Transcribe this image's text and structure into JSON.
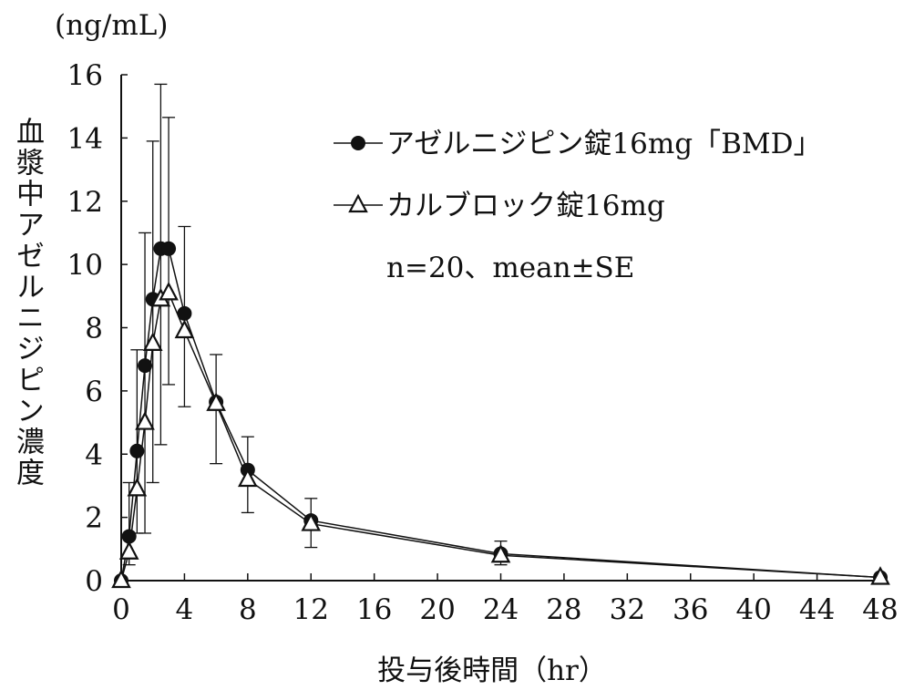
{
  "chart_data": {
    "type": "line",
    "unit_label": "(ng/mL)",
    "ylabel": "血漿中アゼルニジピン濃度",
    "xlabel": "投与後時間（hr）",
    "xlim": [
      0,
      48
    ],
    "ylim": [
      0,
      16
    ],
    "xticks": [
      0,
      4,
      8,
      12,
      16,
      20,
      24,
      28,
      32,
      36,
      40,
      44,
      48
    ],
    "yticks": [
      0,
      2,
      4,
      6,
      8,
      10,
      12,
      14,
      16
    ],
    "grid": false,
    "legend_position": "top-right",
    "annotation": "n=20、mean±SE",
    "x": [
      0,
      0.5,
      1,
      1.5,
      2,
      2.5,
      3,
      4,
      6,
      8,
      12,
      24,
      48
    ],
    "series": [
      {
        "name": "アゼルニジピン錠16mg「BMD」",
        "marker": "filled-circle",
        "values": [
          0,
          1.4,
          4.1,
          6.8,
          8.9,
          10.5,
          10.5,
          8.45,
          5.65,
          3.5,
          1.9,
          0.85,
          0.1
        ],
        "error_high": [
          0,
          3.1,
          7.3,
          11.0,
          13.9,
          15.7,
          null,
          11.2,
          7.15,
          4.55,
          2.6,
          1.25,
          0.15
        ],
        "error_low": [
          0,
          0.5,
          1.5,
          1.5,
          3.1,
          4.3,
          null,
          5.5,
          3.7,
          2.15,
          1.05,
          0.5,
          0.05
        ]
      },
      {
        "name": "カルブロック錠16mg",
        "marker": "open-triangle",
        "values": [
          0,
          0.9,
          2.9,
          5.0,
          7.5,
          8.9,
          9.1,
          7.9,
          5.6,
          3.2,
          1.8,
          0.8,
          0.1
        ],
        "error_high": [
          null,
          null,
          null,
          null,
          null,
          null,
          14.65,
          null,
          null,
          null,
          null,
          null,
          null
        ],
        "error_low": [
          null,
          null,
          null,
          null,
          null,
          null,
          6.2,
          null,
          null,
          null,
          null,
          null,
          null
        ]
      }
    ]
  }
}
